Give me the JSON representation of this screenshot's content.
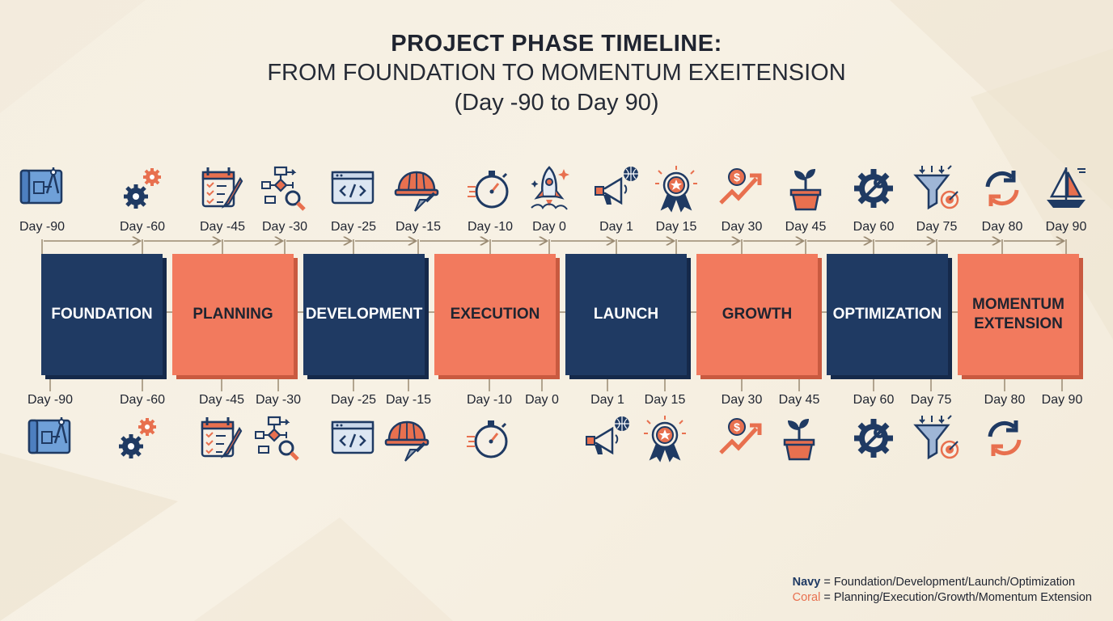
{
  "title": {
    "line1": "PROJECT PHASE TIMELINE:",
    "line2": "FROM FOUNDATION TO MOMENTUM EXEITENSION",
    "line3": "(Day -90 to Day 90)"
  },
  "colors": {
    "navy": "#1f3a63",
    "coral": "#f27a5e",
    "background": "#f5efe2"
  },
  "phases": [
    {
      "name": "FOUNDATION",
      "color": "navy"
    },
    {
      "name": "PLANNING",
      "color": "coral"
    },
    {
      "name": "DEVELOPMENT",
      "color": "navy"
    },
    {
      "name": "EXECUTION",
      "color": "coral"
    },
    {
      "name": "LAUNCH",
      "color": "navy"
    },
    {
      "name": "GROWTH",
      "color": "coral"
    },
    {
      "name": "OPTIMIZATION",
      "color": "navy"
    },
    {
      "name": "MOMENTUM EXTENSION",
      "color": "coral"
    }
  ],
  "top_markers": [
    {
      "label": "Day -90",
      "icon": "blueprint-icon"
    },
    {
      "label": "Day -60",
      "icon": "gears-icon"
    },
    {
      "label": "Day -45",
      "icon": "calendar-checklist-icon"
    },
    {
      "label": "Day -30",
      "icon": "flowchart-search-icon"
    },
    {
      "label": "Day -25",
      "icon": "code-window-icon"
    },
    {
      "label": "Day -15",
      "icon": "hardhat-trowel-icon"
    },
    {
      "label": "Day -10",
      "icon": "stopwatch-icon"
    },
    {
      "label": "Day 0",
      "icon": "rocket-icon"
    },
    {
      "label": "Day 1",
      "icon": "megaphone-globe-icon"
    },
    {
      "label": "Day 15",
      "icon": "award-ribbon-icon"
    },
    {
      "label": "Day 30",
      "icon": "growth-arrow-dollar-icon"
    },
    {
      "label": "Day 45",
      "icon": "plant-pot-icon"
    },
    {
      "label": "Day 60",
      "icon": "gear-wrench-icon"
    },
    {
      "label": "Day 75",
      "icon": "funnel-target-icon"
    },
    {
      "label": "Day 80",
      "icon": "refresh-cycle-icon"
    },
    {
      "label": "Day 90",
      "icon": "sailboat-icon"
    }
  ],
  "bottom_markers": [
    {
      "label": "Day -90",
      "icon": "blueprint-icon"
    },
    {
      "label": "Day -60",
      "icon": "gears-icon"
    },
    {
      "label": "Day -45",
      "icon": "calendar-checklist-icon"
    },
    {
      "label": "Day -30",
      "icon": "flowchart-search-icon"
    },
    {
      "label": "Day -25",
      "icon": "code-window-icon"
    },
    {
      "label": "Day -15",
      "icon": "hardhat-trowel-icon"
    },
    {
      "label": "Day -10",
      "icon": "stopwatch-icon"
    },
    {
      "label": "Day 0",
      "icon": ""
    },
    {
      "label": "Day 1",
      "icon": "megaphone-globe-icon"
    },
    {
      "label": "Day 15",
      "icon": "award-ribbon-icon"
    },
    {
      "label": "Day 30",
      "icon": "growth-arrow-dollar-icon"
    },
    {
      "label": "Day 45",
      "icon": "plant-pot-icon"
    },
    {
      "label": "Day 60",
      "icon": "gear-wrench-icon"
    },
    {
      "label": "Day 75",
      "icon": "funnel-target-icon"
    },
    {
      "label": "Day 80",
      "icon": "refresh-cycle-icon"
    },
    {
      "label": "Day 90",
      "icon": ""
    }
  ],
  "legend": {
    "navy_word": "Navy",
    "navy_text": " = Foundation/Development/Launch/Optimization",
    "coral_word": "Coral",
    "coral_text": " = Planning/Execution/Growth/Momentum Extension"
  }
}
